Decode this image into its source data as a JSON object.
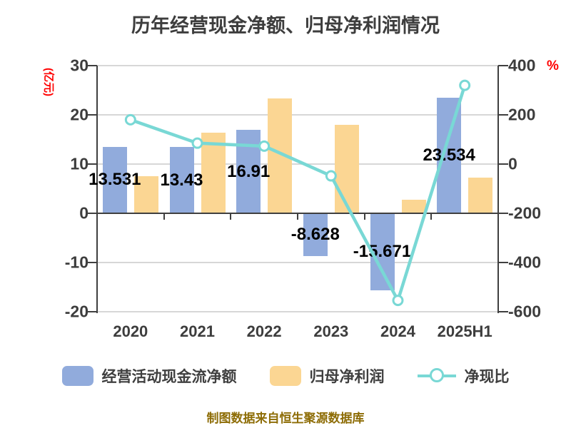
{
  "title": "历年经营现金净额、归母净利润情况",
  "footer": "制图数据来自恒生聚源数据库",
  "left_axis": {
    "unit": "(亿元)",
    "ticks": [
      "30",
      "20",
      "10",
      "0",
      "-10",
      "-20"
    ]
  },
  "right_axis": {
    "unit": "%",
    "ticks": [
      "400",
      "200",
      "0",
      "-200",
      "-400",
      "-600"
    ]
  },
  "chart_data": {
    "type": "bar+line",
    "categories": [
      "2020",
      "2021",
      "2022",
      "2023",
      "2024",
      "2025H1"
    ],
    "series": [
      {
        "name": "经营活动现金流净额",
        "type": "bar",
        "axis": "left",
        "color": "#91abdc",
        "values": [
          13.531,
          13.43,
          16.91,
          -8.628,
          -15.671,
          23.534
        ],
        "labels": [
          "13.531",
          "13.43",
          "16.91",
          "-8.628",
          "-15.671",
          "23.534"
        ]
      },
      {
        "name": "归母净利润",
        "type": "bar",
        "axis": "left",
        "color": "#fbd693",
        "values": [
          7.6,
          16.4,
          23.4,
          17.9,
          2.8,
          7.3
        ]
      },
      {
        "name": "净现比",
        "type": "line",
        "axis": "right",
        "color": "#79d8d5",
        "marker": "circle-white",
        "values": [
          180,
          85,
          73,
          -48,
          -554,
          320
        ]
      }
    ],
    "left_ylim": [
      -20,
      30
    ],
    "right_ylim": [
      -600,
      400
    ],
    "left_unit": "亿元",
    "right_unit": "%",
    "grid": true,
    "legend_position": "bottom"
  }
}
